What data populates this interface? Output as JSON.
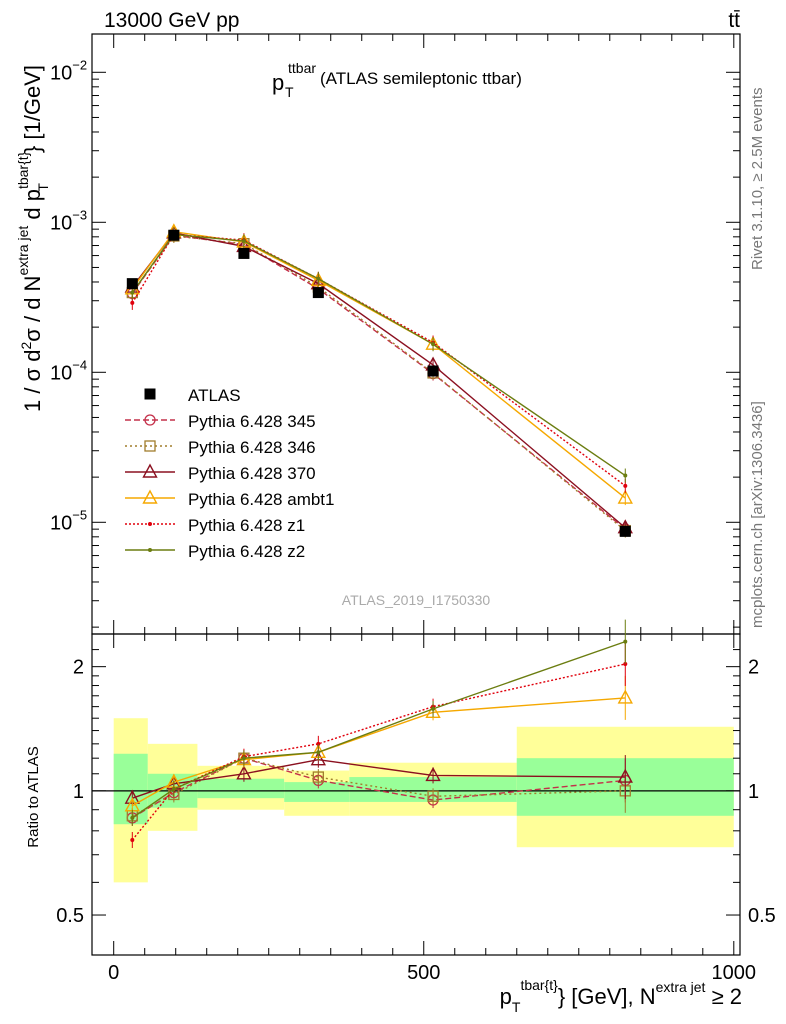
{
  "header": {
    "beam": "13000 GeV pp",
    "process": "tt̄"
  },
  "plot_title": {
    "main": "p",
    "sub": "T",
    "sup": "ttbar",
    "rest": " (ATLAS semileptonic ttbar)"
  },
  "side_labels": {
    "rivet": "Rivet 3.1.10, ≥ 2.5M events",
    "mcplots": "mcplots.cern.ch [arXiv:1306.3436]"
  },
  "analysis_id": "ATLAS_2019_I1750330",
  "ylabel_main": "1 / σ d²σ / d N^{extra jet} d p_T^{tbar{t}} [1/GeV]",
  "ylabel_ratio": "Ratio to ATLAS",
  "xlabel": "p_T^{tbar{t}} [GeV], N^{extra jet} ≥ 2",
  "colors": {
    "ATLAS": "#000000",
    "345": "#c4304a",
    "346": "#a07d2c",
    "370": "#8b1020",
    "ambt1": "#f5a800",
    "z1": "#e0000c",
    "z2": "#6b7d10",
    "band_inner": "#99ff99",
    "band_outer": "#ffff99"
  },
  "chart_data": [
    {
      "type": "line",
      "panel": "main",
      "ylog": true,
      "xlim": [
        -35,
        1010
      ],
      "ylim": [
        1.8e-06,
        0.018
      ],
      "yticks_labeled": [
        {
          "value": 1e-05,
          "mant": "10",
          "exp": "−5"
        },
        {
          "value": 0.0001,
          "mant": "10",
          "exp": "−4"
        },
        {
          "value": 0.001,
          "mant": "10",
          "exp": "−3"
        },
        {
          "value": 0.01,
          "mant": "10",
          "exp": "−2"
        }
      ],
      "data": {
        "name": "ATLAS",
        "x": [
          30,
          97,
          210,
          330,
          515,
          825
        ],
        "y": [
          0.00039,
          0.00082,
          0.00062,
          0.00034,
          0.000102,
          8.7e-06
        ],
        "xerr": [
          [
            0,
            60
          ],
          [
            60,
            135
          ],
          [
            135,
            275
          ],
          [
            275,
            380
          ],
          [
            380,
            650
          ],
          [
            650,
            1000
          ]
        ]
      },
      "series": [
        {
          "name": "Pythia 6.428 345",
          "key": "345",
          "marker": "circle",
          "dash": "6,3",
          "y": [
            0.000335,
            0.00082,
            0.00071,
            0.00036,
            9.8e-05,
            9e-06
          ]
        },
        {
          "name": "Pythia 6.428 346",
          "key": "346",
          "marker": "square",
          "dash": "2,3",
          "y": [
            0.00034,
            0.00081,
            0.00072,
            0.00037,
            9.9e-05,
            8.8e-06
          ]
        },
        {
          "name": "Pythia 6.428 370",
          "key": "370",
          "marker": "triangle",
          "dash": "",
          "y": [
            0.00037,
            0.00085,
            0.00069,
            0.00039,
            0.000112,
            9.2e-06
          ]
        },
        {
          "name": "Pythia 6.428 ambt1",
          "key": "ambt1",
          "marker": "triangle",
          "dash": "",
          "y": [
            0.00036,
            0.000865,
            0.00074,
            0.00041,
            0.000154,
            1.45e-05
          ]
        },
        {
          "name": "Pythia 6.428 z1",
          "key": "z1",
          "marker": "dot",
          "dash": "2,2",
          "y": [
            0.00029,
            0.00083,
            0.00076,
            0.00042,
            0.000158,
            1.75e-05
          ]
        },
        {
          "name": "Pythia 6.428 z2",
          "key": "z2",
          "marker": "dot",
          "dash": "",
          "y": [
            0.00034,
            0.00083,
            0.00075,
            0.00042,
            0.000154,
            2.05e-05
          ]
        }
      ]
    },
    {
      "type": "line",
      "panel": "ratio",
      "ylog": true,
      "xlim": [
        -35,
        1010
      ],
      "ylim": [
        0.4,
        2.4
      ],
      "yticks_labeled": [
        {
          "value": 0.5,
          "label": "0.5"
        },
        {
          "value": 1,
          "label": "1"
        },
        {
          "value": 2,
          "label": "2"
        }
      ],
      "xticks_labeled": [
        {
          "value": 0,
          "label": "0"
        },
        {
          "value": 500,
          "label": "500"
        },
        {
          "value": 1000,
          "label": "1000"
        }
      ],
      "bands": [
        {
          "x": [
            0,
            55
          ],
          "inner": [
            0.83,
            1.23
          ],
          "outer": [
            0.6,
            1.5
          ]
        },
        {
          "x": [
            55,
            135
          ],
          "inner": [
            0.91,
            1.1
          ],
          "outer": [
            0.8,
            1.3
          ]
        },
        {
          "x": [
            135,
            275
          ],
          "inner": [
            0.96,
            1.07
          ],
          "outer": [
            0.9,
            1.15
          ]
        },
        {
          "x": [
            275,
            380
          ],
          "inner": [
            0.94,
            1.05
          ],
          "outer": [
            0.87,
            1.12
          ]
        },
        {
          "x": [
            380,
            650
          ],
          "inner": [
            0.94,
            1.08
          ],
          "outer": [
            0.87,
            1.17
          ]
        },
        {
          "x": [
            650,
            1000
          ],
          "inner": [
            0.87,
            1.2
          ],
          "outer": [
            0.73,
            1.43
          ]
        }
      ],
      "series": [
        {
          "key": "345",
          "y": [
            0.86,
            0.99,
            1.2,
            1.06,
            0.95,
            1.06
          ]
        },
        {
          "key": "346",
          "y": [
            0.87,
            0.98,
            1.2,
            1.08,
            0.97,
            1.0
          ]
        },
        {
          "key": "370",
          "y": [
            0.96,
            1.04,
            1.1,
            1.19,
            1.09,
            1.08
          ]
        },
        {
          "key": "ambt1",
          "y": [
            0.92,
            1.05,
            1.19,
            1.24,
            1.55,
            1.68
          ]
        },
        {
          "key": "z1",
          "y": [
            0.76,
            1.01,
            1.21,
            1.3,
            1.6,
            2.03
          ]
        },
        {
          "key": "z2",
          "y": [
            0.86,
            1.01,
            1.2,
            1.24,
            1.58,
            2.3
          ]
        }
      ]
    }
  ]
}
